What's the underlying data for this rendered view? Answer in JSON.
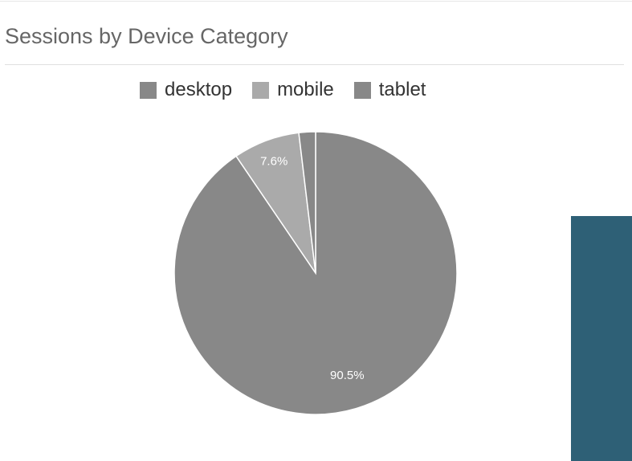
{
  "panel": {
    "title": "Sessions by Device Category"
  },
  "chart_data": {
    "type": "pie",
    "title": "Sessions by Device Category",
    "categories": [
      "desktop",
      "mobile",
      "tablet"
    ],
    "values": [
      90.5,
      7.6,
      1.9
    ],
    "slice_labels": [
      "90.5%",
      "7.6%",
      ""
    ],
    "colors": [
      "#888888",
      "#aaaaaa",
      "#888888"
    ],
    "legend_position": "top"
  },
  "colors": {
    "side_panel": "#2e6076",
    "slice_border": "#ffffff"
  }
}
